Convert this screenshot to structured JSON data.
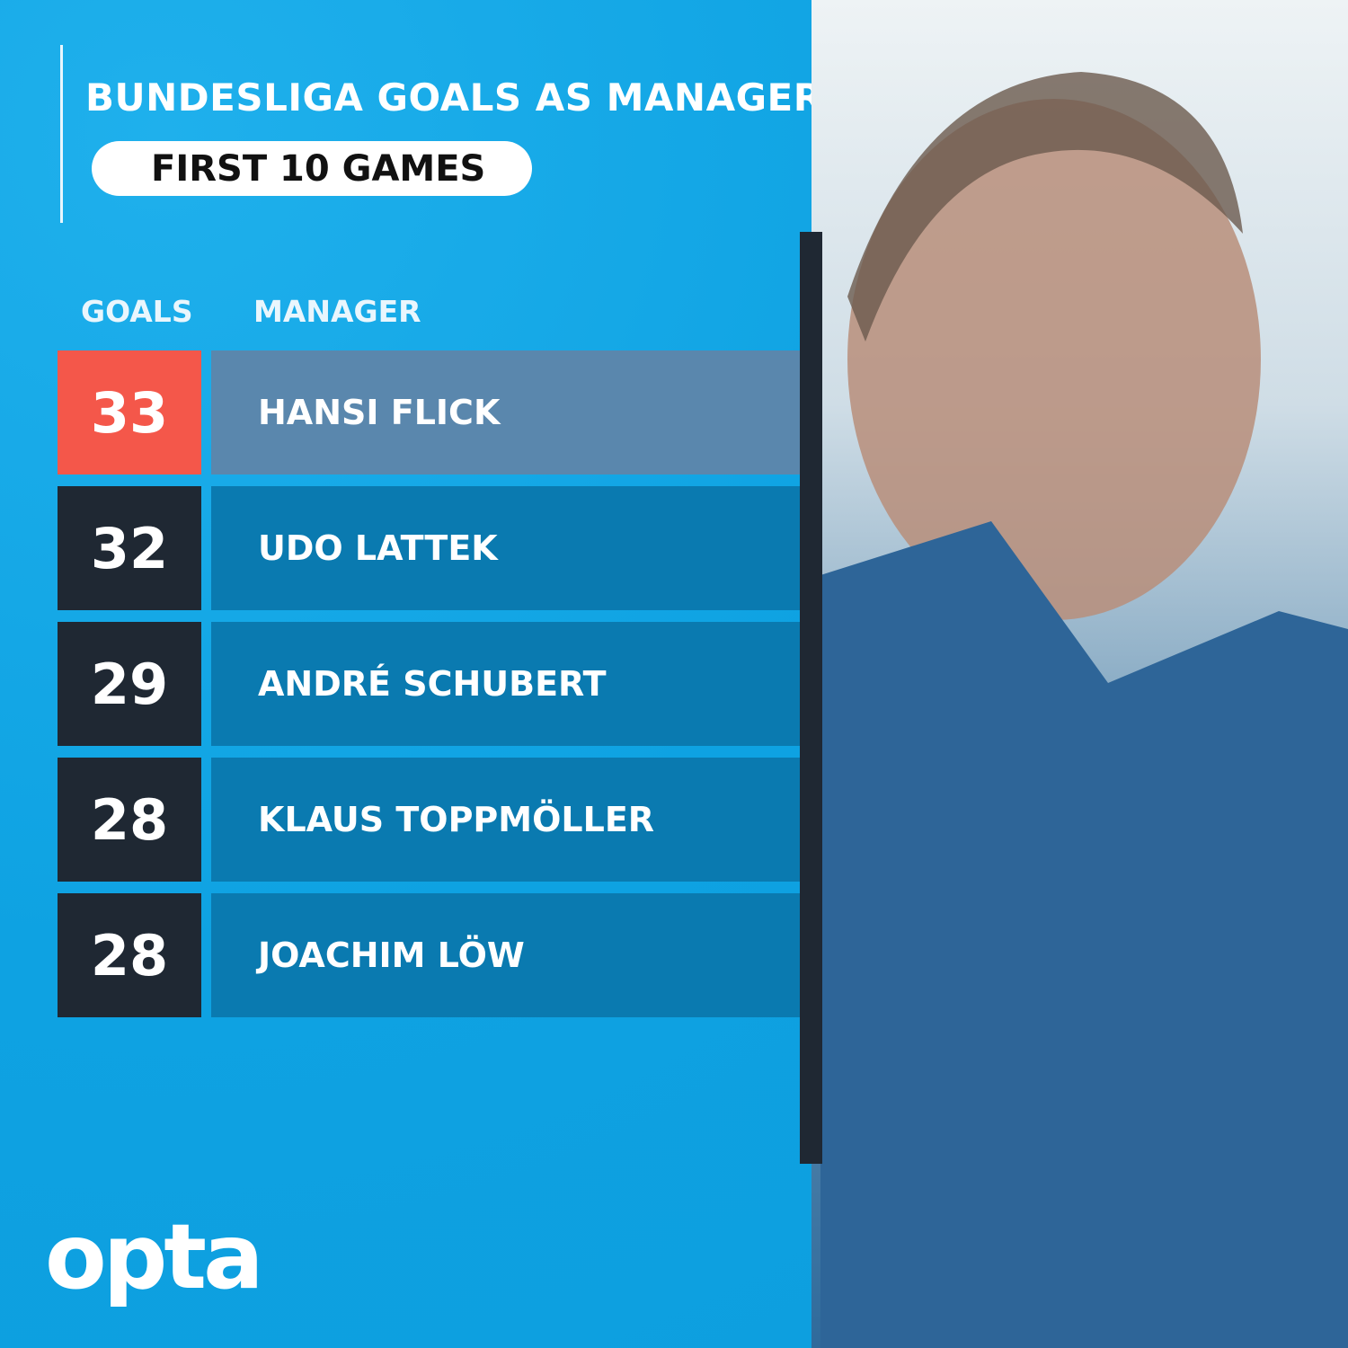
{
  "header": {
    "title": "BUNDESLIGA GOALS AS MANAGER",
    "subtitle": "FIRST 10 GAMES"
  },
  "columns": {
    "goals": "GOALS",
    "manager": "MANAGER"
  },
  "rows": [
    {
      "goals": "33",
      "manager": "HANSI FLICK",
      "highlight": true
    },
    {
      "goals": "32",
      "manager": "UDO LATTEK"
    },
    {
      "goals": "29",
      "manager": "ANDRÉ SCHUBERT"
    },
    {
      "goals": "28",
      "manager": "KLAUS TOPPMÖLLER"
    },
    {
      "goals": "28",
      "manager": "JOACHIM LÖW"
    }
  ],
  "brand": {
    "logo": "opta"
  },
  "colors": {
    "background": "#14a6e4",
    "highlight_goal": "#f4574a",
    "highlight_name": "#5a87ad",
    "goal_box": "#1f2833",
    "name_box": "#0a7ab0"
  },
  "chart_data": {
    "type": "table",
    "title": "BUNDESLIGA GOALS AS MANAGER",
    "subtitle": "FIRST 10 GAMES",
    "columns": [
      "GOALS",
      "MANAGER"
    ],
    "rows": [
      [
        33,
        "HANSI FLICK"
      ],
      [
        32,
        "UDO LATTEK"
      ],
      [
        29,
        "ANDRÉ SCHUBERT"
      ],
      [
        28,
        "KLAUS TOPPMÖLLER"
      ],
      [
        28,
        "JOACHIM LÖW"
      ]
    ]
  }
}
